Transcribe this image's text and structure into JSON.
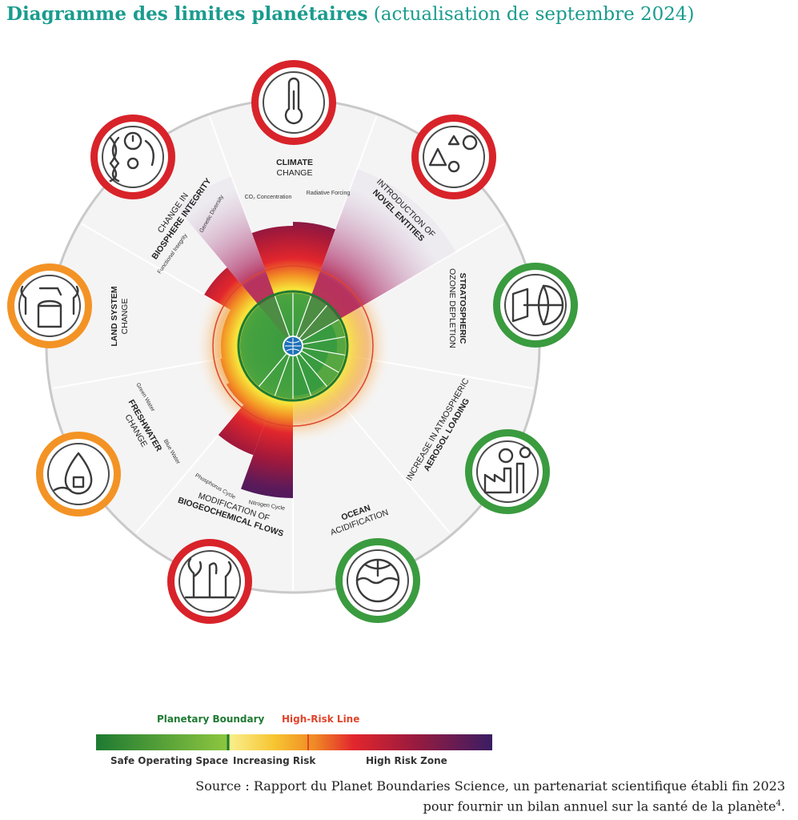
{
  "title": {
    "bold": "Diagramme des limites planétaires",
    "normal": "(actualisation de septembre 2024)"
  },
  "boundaries": [
    {
      "key": "climate",
      "line1": "CLIMATE",
      "line2": "CHANGE",
      "status": "red",
      "icon": "climate-thermometer-icon",
      "sub": [
        "CO₂ Concentration",
        "Radiative Forcing"
      ]
    },
    {
      "key": "novel",
      "line1": "INTRODUCTION OF",
      "line2": "NOVEL ENTITIES",
      "status": "red",
      "icon": "novel-entities-icon",
      "sub": []
    },
    {
      "key": "ozone",
      "line1": "STRATOSPHERIC",
      "line2": "OZONE DEPLETION",
      "status": "green",
      "icon": "ozone-globe-icon",
      "sub": []
    },
    {
      "key": "aerosol",
      "line1": "INCREASE IN ATMOSPHERIC",
      "line2": "AEROSOL LOADING",
      "status": "green",
      "icon": "aerosol-factory-icon",
      "sub": []
    },
    {
      "key": "ocean",
      "line1": "OCEAN",
      "line2": "ACIDIFICATION",
      "status": "green",
      "icon": "ocean-ph-icon",
      "sub": []
    },
    {
      "key": "biogeo",
      "line1": "MODIFICATION OF",
      "line2": "BIOGEOCHEMICAL FLOWS",
      "status": "red",
      "icon": "biogeochemical-plants-icon",
      "sub": [
        "Phosphorus Cycle",
        "Nitrogen Cycle"
      ]
    },
    {
      "key": "freshwater",
      "line1": "FRESHWATER",
      "line2": "CHANGE",
      "status": "orange",
      "icon": "freshwater-drop-icon",
      "sub": [
        "Green Water",
        "Blue Water"
      ]
    },
    {
      "key": "land",
      "line1": "LAND SYSTEM",
      "line2": "CHANGE",
      "status": "orange",
      "icon": "land-system-tree-icon",
      "sub": []
    },
    {
      "key": "biosphere",
      "line1": "CHANGE IN",
      "line2": "BIOSPHERE INTEGRITY",
      "status": "red",
      "icon": "biosphere-dna-icon",
      "sub": [
        "Functional Integrity",
        "Genetic Diversity"
      ]
    }
  ],
  "colors": {
    "red": "#d8232a",
    "orange": "#f39325",
    "green": "#3a9b3f",
    "ring": "#c9c9c9"
  },
  "legend": {
    "planetary_boundary": "Planetary Boundary",
    "high_risk_line": "High-Risk Line",
    "safe": "Safe Operating Space",
    "increasing": "Increasing Risk",
    "high_zone": "High Risk Zone"
  },
  "source": {
    "line1": "Source : Rapport du Planet Boundaries Science, un partenariat scientifique établi fin 2023",
    "line2": "pour fournir un bilan annuel sur la santé de la planète",
    "note": "4"
  }
}
